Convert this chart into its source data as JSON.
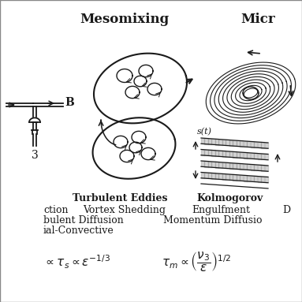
{
  "bg_color": "#ffffff",
  "title_meso": "Mesomixing",
  "title_micr": "Micr",
  "label_turb_eddies": "Turbulent Eddies",
  "label_kolmogorov": "Kolmogorov",
  "label_vortex": "Vortex Shedding",
  "label_engulfment": "Engulfment",
  "label_D": "D",
  "label_ction": "ction",
  "label_turbdiff": "bulent Diffusion",
  "label_convective": "ial-Convective",
  "label_momentum": "Momentum Diffusio",
  "label_B": "B",
  "label_3": "3",
  "label_st": "s(t)",
  "text_color": "#1a1a1a"
}
